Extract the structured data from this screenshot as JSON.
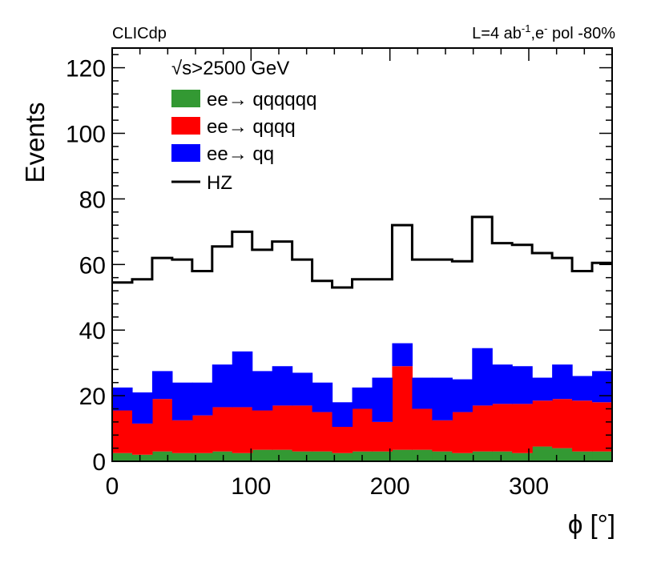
{
  "chart_data": {
    "type": "histogram-stacked",
    "header_left": "CLICdp",
    "header_right": "L=4 ab",
    "header_right_sup1": "-1",
    "header_right_mid": ",e",
    "header_right_sup2": "-",
    "header_right_end": " pol -80%",
    "xlabel": "ϕ [°]",
    "ylabel": "Events",
    "xlim": [
      0,
      360
    ],
    "ylim": [
      0,
      126
    ],
    "xticks": [
      0,
      100,
      200,
      300
    ],
    "xtick_labels": [
      "0",
      "100",
      "200",
      "300"
    ],
    "yticks": [
      0,
      20,
      40,
      60,
      80,
      100,
      120
    ],
    "ytick_labels": [
      "0",
      "20",
      "40",
      "60",
      "80",
      "100",
      "120"
    ],
    "bin_edges": [
      0,
      14.4,
      28.8,
      43.2,
      57.6,
      72,
      86.4,
      100.8,
      115.2,
      129.6,
      144,
      158.4,
      172.8,
      187.2,
      201.6,
      216,
      230.4,
      244.8,
      259.2,
      273.6,
      288,
      302.4,
      316.8,
      331.2,
      345.6,
      360
    ],
    "legend_title": "√s>2500 GeV",
    "series": [
      {
        "name": "ee→ qqqqqq",
        "color": "#339933",
        "type": "stacked",
        "values": [
          2.5,
          2.0,
          3.0,
          2.5,
          2.5,
          3.0,
          2.5,
          3.5,
          3.5,
          3.0,
          3.0,
          2.5,
          3.0,
          3.0,
          3.5,
          3.5,
          3.0,
          2.5,
          3.0,
          3.0,
          2.5,
          4.5,
          4.0,
          3.0,
          3.0
        ]
      },
      {
        "name": "ee→ qqqq",
        "color": "#ff0000",
        "type": "stacked",
        "values": [
          13.0,
          9.5,
          16.0,
          10.0,
          11.5,
          13.5,
          14.0,
          12.0,
          13.5,
          14.0,
          12.0,
          8.0,
          13.0,
          9.0,
          25.5,
          12.5,
          9.5,
          12.5,
          14.0,
          14.5,
          15.0,
          14.0,
          15.0,
          15.5,
          15.0
        ]
      },
      {
        "name": "ee→ qq",
        "color": "#0000ff",
        "type": "stacked",
        "values": [
          7.0,
          9.5,
          8.5,
          11.5,
          10.0,
          13.0,
          17.0,
          12.0,
          12.0,
          10.0,
          9.0,
          7.5,
          6.5,
          13.5,
          7.0,
          9.5,
          13.0,
          10.0,
          17.5,
          12.0,
          11.5,
          7.0,
          10.5,
          7.5,
          9.5
        ]
      },
      {
        "name": "HZ",
        "color": "#000000",
        "type": "line",
        "values": [
          54.5,
          55.5,
          62.0,
          61.5,
          58.0,
          65.5,
          70.0,
          64.5,
          67.0,
          61.5,
          55.0,
          53.0,
          55.5,
          55.5,
          72.0,
          61.5,
          61.5,
          61.0,
          74.5,
          66.5,
          66.0,
          63.5,
          62.0,
          58.0,
          60.5
        ]
      }
    ]
  }
}
